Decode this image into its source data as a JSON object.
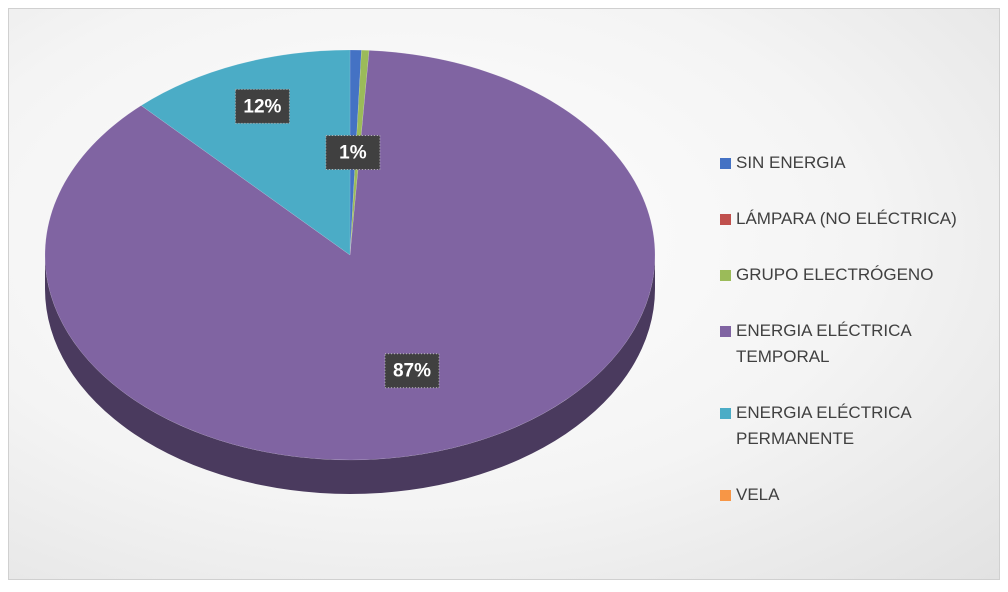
{
  "chart_data": {
    "type": "pie",
    "categories": [
      "SIN ENERGIA",
      "LÁMPARA (NO ELÉCTRICA)",
      "GRUPO ELECTRÓGENO",
      "ENERGIA ELÉCTRICA TEMPORAL",
      "ENERGIA ELÉCTRICA PERMANENTE",
      "VELA"
    ],
    "values": [
      0.6,
      0,
      0.4,
      87,
      12,
      0
    ],
    "value_labels": [
      "1%",
      null,
      null,
      "87%",
      "12%",
      null
    ],
    "colors": [
      "#4472c4",
      "#c0504d",
      "#9bbb59",
      "#8064a2",
      "#4bacc6",
      "#f79646"
    ],
    "legend": "right"
  }
}
